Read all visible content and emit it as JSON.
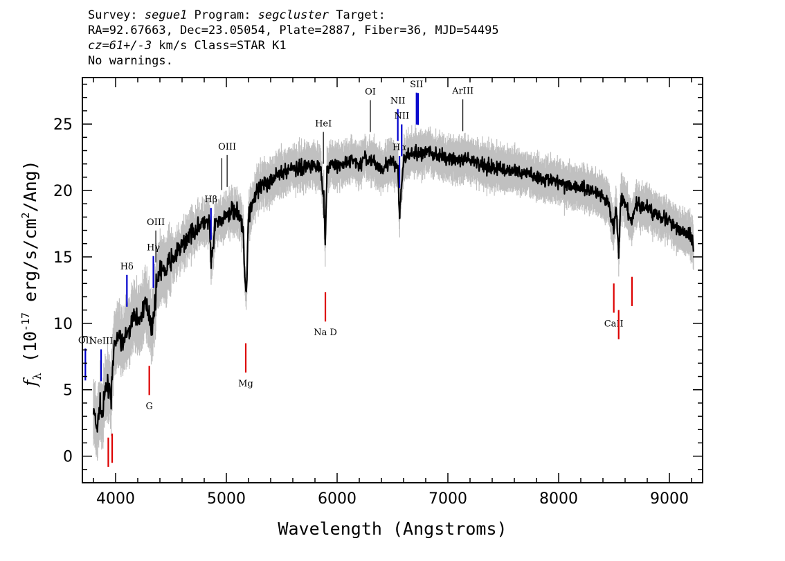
{
  "header": {
    "line1": {
      "survey_label": "Survey: ",
      "survey": "segue1",
      "program_label": " Program: ",
      "program": "segcluster",
      "target_label": " Target:"
    },
    "line2": "RA=92.67663, Dec=23.05054, Plate=2887, Fiber=36, MJD=54495",
    "line3": {
      "cz": "cz=61+/-3",
      "rest": " km/s Class=STAR K1"
    },
    "line4": "No warnings."
  },
  "chart_data": {
    "type": "line",
    "xlabel": "Wavelength (Angstroms)",
    "ylabel": "f_λ (10^-17 erg/s/cm^2/Ang)",
    "xlim": [
      3700,
      9300
    ],
    "ylim": [
      -2,
      28.5
    ],
    "xticks": [
      4000,
      5000,
      6000,
      7000,
      8000,
      9000
    ],
    "yticks": [
      0,
      5,
      10,
      15,
      20,
      25
    ],
    "grid": false,
    "colors": {
      "flux": "#000000",
      "error": "#c0c0c0",
      "emission": "#0000cc",
      "absorption": "#dd0000"
    },
    "series": [
      {
        "style": "noisy-spectrum",
        "x": [
          3800,
          3830,
          3860,
          3880,
          3910,
          3940,
          3960,
          3990,
          4030,
          4060,
          4100,
          4140,
          4180,
          4220,
          4260,
          4300,
          4330,
          4370,
          4400,
          4440,
          4480,
          4520,
          4560,
          4600,
          4650,
          4700,
          4750,
          4800,
          4850,
          4860,
          4900,
          4950,
          5000,
          5050,
          5100,
          5150,
          5170,
          5180,
          5200,
          5250,
          5300,
          5350,
          5400,
          5450,
          5500,
          5550,
          5600,
          5650,
          5700,
          5750,
          5800,
          5850,
          5880,
          5893,
          5910,
          5950,
          6000,
          6050,
          6100,
          6150,
          6200,
          6250,
          6300,
          6350,
          6400,
          6450,
          6500,
          6550,
          6563,
          6600,
          6650,
          6700,
          6750,
          6800,
          6850,
          6900,
          6950,
          7000,
          7100,
          7200,
          7300,
          7400,
          7500,
          7600,
          7700,
          7800,
          7900,
          8000,
          8100,
          8200,
          8300,
          8400,
          8450,
          8498,
          8520,
          8542,
          8560,
          8600,
          8662,
          8700,
          8750,
          8800,
          8850,
          8900,
          8950,
          9000,
          9050,
          9100,
          9150,
          9200,
          9220
        ],
        "y": [
          3.5,
          2.0,
          3.8,
          3.0,
          5.0,
          5.5,
          4.5,
          8.5,
          9.0,
          8.5,
          9.0,
          10.0,
          10.5,
          10.2,
          11.5,
          11.0,
          9.5,
          13.0,
          14.0,
          13.8,
          14.5,
          15.0,
          15.3,
          15.8,
          16.5,
          17.0,
          17.3,
          17.5,
          17.6,
          14.0,
          17.5,
          17.8,
          18.0,
          18.5,
          18.6,
          17.0,
          13.0,
          12.0,
          18.2,
          19.5,
          20.0,
          20.5,
          20.8,
          21.2,
          21.3,
          21.5,
          21.8,
          21.6,
          21.8,
          22.0,
          21.9,
          21.8,
          19.5,
          16.0,
          21.7,
          22.0,
          21.7,
          22.0,
          22.1,
          22.3,
          21.8,
          22.5,
          22.2,
          22.0,
          21.7,
          22.0,
          22.2,
          21.5,
          18.0,
          22.4,
          22.6,
          22.8,
          22.7,
          23.0,
          22.8,
          22.6,
          22.5,
          22.4,
          22.3,
          22.2,
          22.0,
          21.8,
          21.6,
          21.5,
          21.3,
          21.0,
          20.8,
          20.6,
          20.4,
          20.2,
          20.0,
          19.6,
          19.0,
          17.0,
          19.0,
          15.0,
          19.3,
          19.0,
          17.5,
          19.0,
          18.8,
          18.7,
          18.4,
          18.2,
          18.0,
          17.6,
          17.3,
          17.0,
          16.8,
          16.5,
          15.8
        ]
      }
    ],
    "lines": [
      {
        "label": "OII",
        "wavelength": 3727,
        "kind": "emission",
        "label_pos": "above"
      },
      {
        "label": "NeIII",
        "wavelength": 3869,
        "kind": "emission",
        "label_pos": "above"
      },
      {
        "label": "Hδ",
        "wavelength": 4102,
        "kind": "emission",
        "label_pos": "above"
      },
      {
        "label": "Hγ",
        "wavelength": 4341,
        "kind": "emission",
        "label_pos": "above"
      },
      {
        "label": "OIII",
        "wavelength": 4363,
        "kind": "emission",
        "label_pos": "above"
      },
      {
        "label": "Hβ",
        "wavelength": 4861,
        "kind": "emission",
        "label_pos": "above"
      },
      {
        "label": "OIII",
        "wavelength": 4959,
        "kind": "emission",
        "label_pos": "none"
      },
      {
        "label": "OIII",
        "wavelength": 5007,
        "kind": "emission",
        "label_pos": "above"
      },
      {
        "label": "HeI",
        "wavelength": 5876,
        "kind": "emission",
        "label_pos": "above"
      },
      {
        "label": "OI",
        "wavelength": 6300,
        "kind": "emission",
        "label_pos": "above"
      },
      {
        "label": "NII",
        "wavelength": 6548,
        "kind": "emission",
        "label_pos": "above"
      },
      {
        "label": "Hα",
        "wavelength": 6563,
        "kind": "emission",
        "label_pos": "above"
      },
      {
        "label": "NII",
        "wavelength": 6583,
        "kind": "emission",
        "label_pos": "above"
      },
      {
        "label": "SII",
        "wavelength": 6717,
        "kind": "emission",
        "label_pos": "above"
      },
      {
        "label": "SII",
        "wavelength": 6731,
        "kind": "emission",
        "label_pos": "none"
      },
      {
        "label": "ArIII",
        "wavelength": 7135,
        "kind": "emission",
        "label_pos": "above"
      },
      {
        "label": "K",
        "wavelength": 3934,
        "kind": "absorption",
        "label_pos": "none"
      },
      {
        "label": "H",
        "wavelength": 3969,
        "kind": "absorption",
        "label_pos": "none"
      },
      {
        "label": "G",
        "wavelength": 4304,
        "kind": "absorption",
        "label_pos": "below"
      },
      {
        "label": "Mg",
        "wavelength": 5175,
        "kind": "absorption",
        "label_pos": "below"
      },
      {
        "label": "Na D",
        "wavelength": 5894,
        "kind": "absorption",
        "label_pos": "below"
      },
      {
        "label": "CaII",
        "wavelength": 8498,
        "kind": "absorption",
        "label_pos": "below"
      },
      {
        "label": "CaII",
        "wavelength": 8542,
        "kind": "absorption",
        "label_pos": "none"
      },
      {
        "label": "CaII",
        "wavelength": 8662,
        "kind": "absorption",
        "label_pos": "none"
      }
    ]
  }
}
